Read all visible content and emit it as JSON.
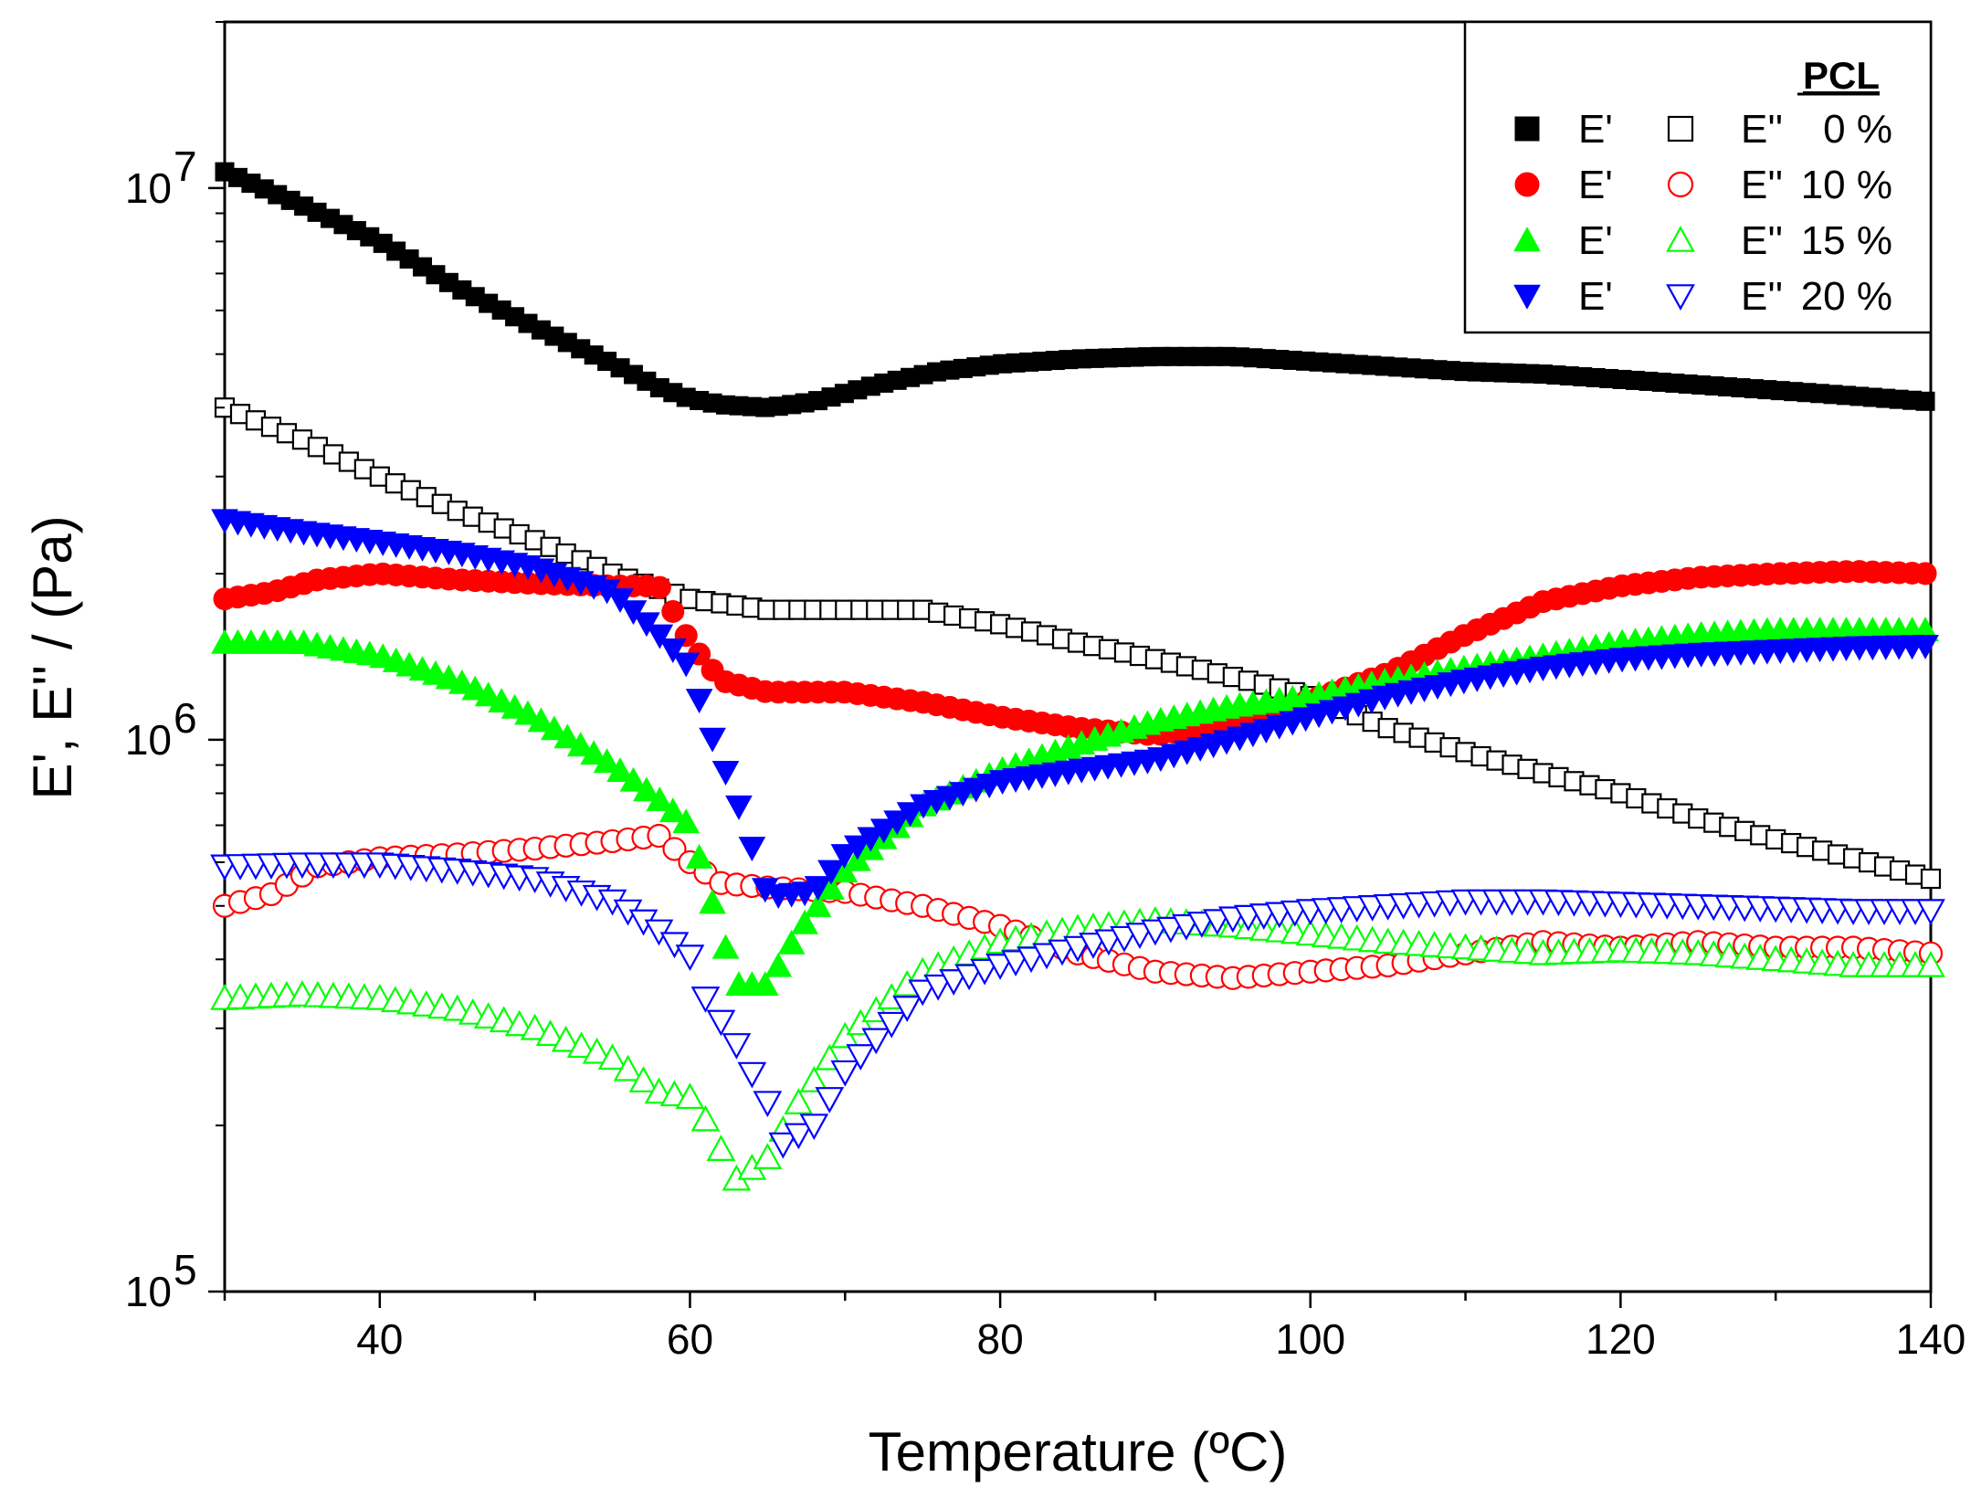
{
  "chart_data": {
    "type": "scatter",
    "title": "",
    "xlabel": "Temperature (ºC)",
    "ylabel": "E', E'' / (Pa)",
    "xscale": "linear",
    "yscale": "log",
    "xlim": [
      30,
      140
    ],
    "ylim": [
      100000,
      20000000
    ],
    "xticks": [
      40,
      60,
      80,
      100,
      120,
      140
    ],
    "xtick_labels": [
      "40",
      "60",
      "80",
      "100",
      "120",
      "140"
    ],
    "yticks": [
      {
        "value": 100000,
        "base": "10",
        "exp": "5"
      },
      {
        "value": 1000000,
        "base": "10",
        "exp": "6"
      },
      {
        "value": 10000000,
        "base": "10",
        "exp": "7"
      }
    ],
    "legend": {
      "position": "top-right",
      "header": "PCL",
      "rows": [
        {
          "storage_label": "E'",
          "loss_label": "E''",
          "group": "0 %"
        },
        {
          "storage_label": "E'",
          "loss_label": "E''",
          "group": "10 %"
        },
        {
          "storage_label": "E'",
          "loss_label": "E''",
          "group": "15 %"
        },
        {
          "storage_label": "E'",
          "loss_label": "E''",
          "group": "20 %"
        }
      ]
    },
    "series": [
      {
        "name": "E' 0 %",
        "group": "0 %",
        "modulus": "E'",
        "marker": "square",
        "filled": true,
        "color": "#000000",
        "points": [
          [
            30,
            10700000.0
          ],
          [
            35,
            9300000.0
          ],
          [
            40,
            8000000.0
          ],
          [
            45,
            6600000.0
          ],
          [
            50,
            5600000.0
          ],
          [
            55,
            4800000.0
          ],
          [
            58,
            4350000.0
          ],
          [
            60,
            4150000.0
          ],
          [
            62,
            4050000.0
          ],
          [
            65,
            4000000.0
          ],
          [
            68,
            4100000.0
          ],
          [
            72,
            4400000.0
          ],
          [
            76,
            4650000.0
          ],
          [
            80,
            4800000.0
          ],
          [
            85,
            4900000.0
          ],
          [
            90,
            4950000.0
          ],
          [
            95,
            4950000.0
          ],
          [
            100,
            4850000.0
          ],
          [
            105,
            4750000.0
          ],
          [
            110,
            4650000.0
          ],
          [
            115,
            4600000.0
          ],
          [
            120,
            4500000.0
          ],
          [
            125,
            4400000.0
          ],
          [
            130,
            4300000.0
          ],
          [
            135,
            4200000.0
          ],
          [
            140,
            4100000.0
          ]
        ]
      },
      {
        "name": "E'' 0 %",
        "group": "0 %",
        "modulus": "E''",
        "marker": "square",
        "filled": false,
        "color": "#000000",
        "points": [
          [
            30,
            4000000.0
          ],
          [
            35,
            3500000.0
          ],
          [
            40,
            3000000.0
          ],
          [
            45,
            2600000.0
          ],
          [
            50,
            2300000.0
          ],
          [
            55,
            2000000.0
          ],
          [
            60,
            1800000.0
          ],
          [
            65,
            1720000.0
          ],
          [
            70,
            1720000.0
          ],
          [
            75,
            1720000.0
          ],
          [
            80,
            1620000.0
          ],
          [
            85,
            1500000.0
          ],
          [
            90,
            1400000.0
          ],
          [
            95,
            1300000.0
          ],
          [
            100,
            1200000.0
          ],
          [
            105,
            1050000.0
          ],
          [
            110,
            950000.0
          ],
          [
            115,
            870000.0
          ],
          [
            120,
            800000.0
          ],
          [
            125,
            720000.0
          ],
          [
            130,
            660000.0
          ],
          [
            135,
            610000.0
          ],
          [
            140,
            560000.0
          ]
        ]
      },
      {
        "name": "E' 10 %",
        "group": "10 %",
        "modulus": "E'",
        "marker": "circle",
        "filled": true,
        "color": "#ff0000",
        "points": [
          [
            30,
            1800000.0
          ],
          [
            33,
            1850000.0
          ],
          [
            36,
            1950000.0
          ],
          [
            40,
            2000000.0
          ],
          [
            45,
            1950000.0
          ],
          [
            50,
            1920000.0
          ],
          [
            55,
            1900000.0
          ],
          [
            58,
            1900000.0
          ],
          [
            60,
            1500000.0
          ],
          [
            62,
            1280000.0
          ],
          [
            65,
            1220000.0
          ],
          [
            70,
            1220000.0
          ],
          [
            75,
            1170000.0
          ],
          [
            80,
            1100000.0
          ],
          [
            85,
            1050000.0
          ],
          [
            90,
            1020000.0
          ],
          [
            95,
            1070000.0
          ],
          [
            100,
            1180000.0
          ],
          [
            105,
            1320000.0
          ],
          [
            110,
            1550000.0
          ],
          [
            115,
            1780000.0
          ],
          [
            120,
            1900000.0
          ],
          [
            125,
            1970000.0
          ],
          [
            130,
            2000000.0
          ],
          [
            135,
            2020000.0
          ],
          [
            140,
            2000000.0
          ]
        ]
      },
      {
        "name": "E'' 10 %",
        "group": "10 %",
        "modulus": "E''",
        "marker": "circle",
        "filled": false,
        "color": "#ff0000",
        "points": [
          [
            30,
            500000.0
          ],
          [
            33,
            525000.0
          ],
          [
            36,
            590000.0
          ],
          [
            40,
            610000.0
          ],
          [
            45,
            620000.0
          ],
          [
            50,
            635000.0
          ],
          [
            55,
            655000.0
          ],
          [
            58,
            670000.0
          ],
          [
            60,
            600000.0
          ],
          [
            62,
            550000.0
          ],
          [
            65,
            540000.0
          ],
          [
            70,
            530000.0
          ],
          [
            75,
            500000.0
          ],
          [
            80,
            460000.0
          ],
          [
            85,
            410000.0
          ],
          [
            90,
            380000.0
          ],
          [
            95,
            370000.0
          ],
          [
            100,
            380000.0
          ],
          [
            105,
            390000.0
          ],
          [
            110,
            410000.0
          ],
          [
            115,
            430000.0
          ],
          [
            120,
            420000.0
          ],
          [
            125,
            430000.0
          ],
          [
            130,
            420000.0
          ],
          [
            135,
            420000.0
          ],
          [
            140,
            410000.0
          ]
        ]
      },
      {
        "name": "E' 15 %",
        "group": "15 %",
        "modulus": "E'",
        "marker": "triangle-up",
        "filled": true,
        "color": "#00ff00",
        "points": [
          [
            30,
            1500000.0
          ],
          [
            35,
            1500000.0
          ],
          [
            40,
            1420000.0
          ],
          [
            45,
            1280000.0
          ],
          [
            50,
            1100000.0
          ],
          [
            55,
            900000.0
          ],
          [
            58,
            780000.0
          ],
          [
            60,
            700000.0
          ],
          [
            61,
            560000.0
          ],
          [
            63,
            360000.0
          ],
          [
            65,
            360000.0
          ],
          [
            67,
            450000.0
          ],
          [
            70,
            580000.0
          ],
          [
            75,
            760000.0
          ],
          [
            80,
            880000.0
          ],
          [
            85,
            980000.0
          ],
          [
            90,
            1080000.0
          ],
          [
            95,
            1150000.0
          ],
          [
            100,
            1200000.0
          ],
          [
            105,
            1280000.0
          ],
          [
            110,
            1350000.0
          ],
          [
            115,
            1420000.0
          ],
          [
            120,
            1500000.0
          ],
          [
            125,
            1550000.0
          ],
          [
            130,
            1580000.0
          ],
          [
            135,
            1580000.0
          ],
          [
            140,
            1580000.0
          ]
        ]
      },
      {
        "name": "E'' 15 %",
        "group": "15 %",
        "modulus": "E''",
        "marker": "triangle-up",
        "filled": false,
        "color": "#00ff00",
        "points": [
          [
            30,
            340000.0
          ],
          [
            35,
            345000.0
          ],
          [
            40,
            340000.0
          ],
          [
            45,
            325000.0
          ],
          [
            50,
            300000.0
          ],
          [
            55,
            265000.0
          ],
          [
            58,
            230000.0
          ],
          [
            60,
            225000.0
          ],
          [
            61,
            205000.0
          ],
          [
            63,
            160000.0
          ],
          [
            65,
            175000.0
          ],
          [
            67,
            220000.0
          ],
          [
            70,
            290000.0
          ],
          [
            75,
            380000.0
          ],
          [
            80,
            430000.0
          ],
          [
            85,
            455000.0
          ],
          [
            90,
            470000.0
          ],
          [
            95,
            460000.0
          ],
          [
            100,
            445000.0
          ],
          [
            105,
            430000.0
          ],
          [
            110,
            420000.0
          ],
          [
            115,
            410000.0
          ],
          [
            120,
            415000.0
          ],
          [
            125,
            410000.0
          ],
          [
            130,
            400000.0
          ],
          [
            135,
            390000.0
          ],
          [
            140,
            390000.0
          ]
        ]
      },
      {
        "name": "E' 20 %",
        "group": "20 %",
        "modulus": "E'",
        "marker": "triangle-down",
        "filled": true,
        "color": "#0000ff",
        "points": [
          [
            30,
            2500000.0
          ],
          [
            35,
            2380000.0
          ],
          [
            40,
            2280000.0
          ],
          [
            45,
            2180000.0
          ],
          [
            50,
            2050000.0
          ],
          [
            55,
            1850000.0
          ],
          [
            58,
            1550000.0
          ],
          [
            60,
            1350000.0
          ],
          [
            61,
            1080000.0
          ],
          [
            63,
            780000.0
          ],
          [
            65,
            520000.0
          ],
          [
            68,
            530000.0
          ],
          [
            70,
            620000.0
          ],
          [
            75,
            760000.0
          ],
          [
            80,
            840000.0
          ],
          [
            85,
            880000.0
          ],
          [
            90,
            920000.0
          ],
          [
            95,
            1000000.0
          ],
          [
            100,
            1100000.0
          ],
          [
            105,
            1200000.0
          ],
          [
            110,
            1280000.0
          ],
          [
            115,
            1350000.0
          ],
          [
            120,
            1400000.0
          ],
          [
            125,
            1430000.0
          ],
          [
            130,
            1450000.0
          ],
          [
            135,
            1470000.0
          ],
          [
            140,
            1480000.0
          ]
        ]
      },
      {
        "name": "E'' 20 %",
        "group": "20 %",
        "modulus": "E''",
        "marker": "triangle-down",
        "filled": false,
        "color": "#0000ff",
        "points": [
          [
            30,
            590000.0
          ],
          [
            35,
            595000.0
          ],
          [
            40,
            595000.0
          ],
          [
            45,
            580000.0
          ],
          [
            50,
            560000.0
          ],
          [
            55,
            510000.0
          ],
          [
            58,
            450000.0
          ],
          [
            60,
            405000.0
          ],
          [
            61,
            340000.0
          ],
          [
            63,
            280000.0
          ],
          [
            65,
            220000.0
          ],
          [
            66,
            185000.0
          ],
          [
            68,
            200000.0
          ],
          [
            70,
            250000.0
          ],
          [
            75,
            350000.0
          ],
          [
            80,
            390000.0
          ],
          [
            85,
            420000.0
          ],
          [
            90,
            450000.0
          ],
          [
            95,
            475000.0
          ],
          [
            100,
            490000.0
          ],
          [
            105,
            500000.0
          ],
          [
            110,
            510000.0
          ],
          [
            115,
            510000.0
          ],
          [
            120,
            505000.0
          ],
          [
            125,
            500000.0
          ],
          [
            130,
            495000.0
          ],
          [
            135,
            490000.0
          ],
          [
            140,
            490000.0
          ]
        ]
      }
    ]
  }
}
